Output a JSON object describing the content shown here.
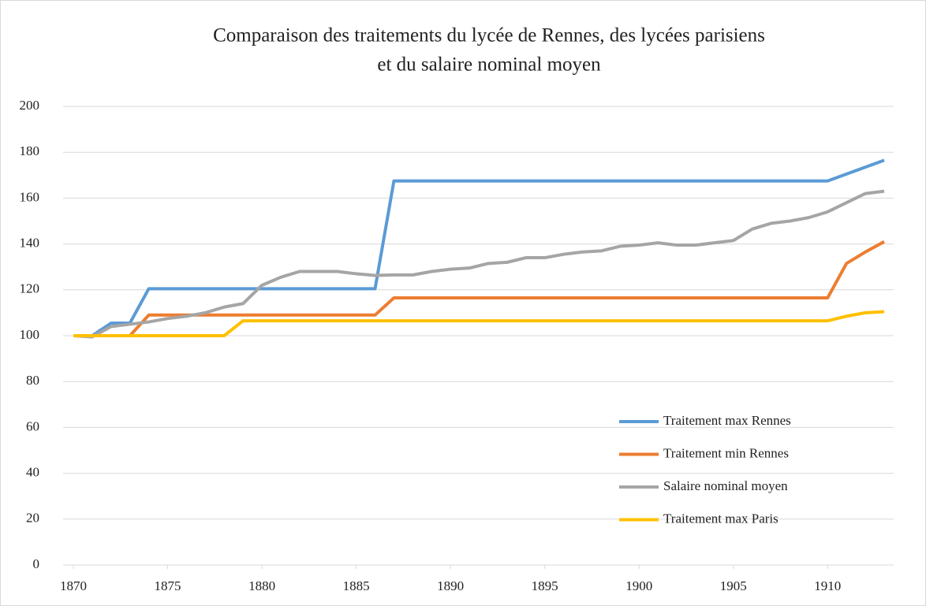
{
  "chart_data": {
    "type": "line",
    "title": [
      "Comparaison des traitements du lycée de Rennes, des lycées parisiens",
      "et du salaire nominal moyen"
    ],
    "x": [
      1870,
      1871,
      1872,
      1873,
      1874,
      1875,
      1876,
      1877,
      1878,
      1879,
      1880,
      1881,
      1882,
      1883,
      1884,
      1885,
      1886,
      1887,
      1888,
      1889,
      1890,
      1891,
      1892,
      1893,
      1894,
      1895,
      1896,
      1897,
      1898,
      1899,
      1900,
      1901,
      1902,
      1903,
      1904,
      1905,
      1906,
      1907,
      1908,
      1909,
      1910,
      1911,
      1912,
      1913
    ],
    "series": [
      {
        "name": "Traitement max Rennes",
        "color": "#5b9bd5",
        "values": [
          100,
          100,
          105.5,
          105.5,
          120.5,
          120.5,
          120.5,
          120.5,
          120.5,
          120.5,
          120.5,
          120.5,
          120.5,
          120.5,
          120.5,
          120.5,
          120.5,
          167.5,
          167.5,
          167.5,
          167.5,
          167.5,
          167.5,
          167.5,
          167.5,
          167.5,
          167.5,
          167.5,
          167.5,
          167.5,
          167.5,
          167.5,
          167.5,
          167.5,
          167.5,
          167.5,
          167.5,
          167.5,
          167.5,
          167.5,
          167.5,
          170.5,
          173.5,
          176.5
        ]
      },
      {
        "name": "Traitement min Rennes",
        "color": "#ed7d31",
        "values": [
          100,
          100,
          100,
          100,
          109,
          109,
          109,
          109,
          109,
          109,
          109,
          109,
          109,
          109,
          109,
          109,
          109,
          116.5,
          116.5,
          116.5,
          116.5,
          116.5,
          116.5,
          116.5,
          116.5,
          116.5,
          116.5,
          116.5,
          116.5,
          116.5,
          116.5,
          116.5,
          116.5,
          116.5,
          116.5,
          116.5,
          116.5,
          116.5,
          116.5,
          116.5,
          116.5,
          131.5,
          136.5,
          141
        ]
      },
      {
        "name": "Salaire nominal moyen",
        "color": "#a5a5a5",
        "values": [
          100,
          99.5,
          104,
          105,
          106,
          107.5,
          108.5,
          110,
          112.5,
          114,
          122,
          125.5,
          128,
          128,
          128,
          127,
          126.3,
          126.5,
          126.5,
          128,
          129,
          129.5,
          131.5,
          132,
          134,
          134,
          135.5,
          136.5,
          137,
          139,
          139.5,
          140.5,
          139.5,
          139.5,
          140.5,
          141.5,
          146.5,
          149,
          150,
          151.5,
          154,
          158,
          162,
          163
        ]
      },
      {
        "name": "Traitement max Paris",
        "color": "#ffc000",
        "values": [
          100,
          100,
          100,
          100,
          100,
          100,
          100,
          100,
          100,
          106.5,
          106.5,
          106.5,
          106.5,
          106.5,
          106.5,
          106.5,
          106.5,
          106.5,
          106.5,
          106.5,
          106.5,
          106.5,
          106.5,
          106.5,
          106.5,
          106.5,
          106.5,
          106.5,
          106.5,
          106.5,
          106.5,
          106.5,
          106.5,
          106.5,
          106.5,
          106.5,
          106.5,
          106.5,
          106.5,
          106.5,
          106.5,
          108.5,
          110,
          110.5
        ]
      }
    ],
    "xlim": [
      1870,
      1913
    ],
    "xticks": [
      1870,
      1875,
      1880,
      1885,
      1890,
      1895,
      1900,
      1905,
      1910
    ],
    "ylim": [
      0,
      200
    ],
    "yticks": [
      0,
      20,
      40,
      60,
      80,
      100,
      120,
      140,
      160,
      180,
      200
    ],
    "grid": true,
    "legend": "lower right"
  }
}
